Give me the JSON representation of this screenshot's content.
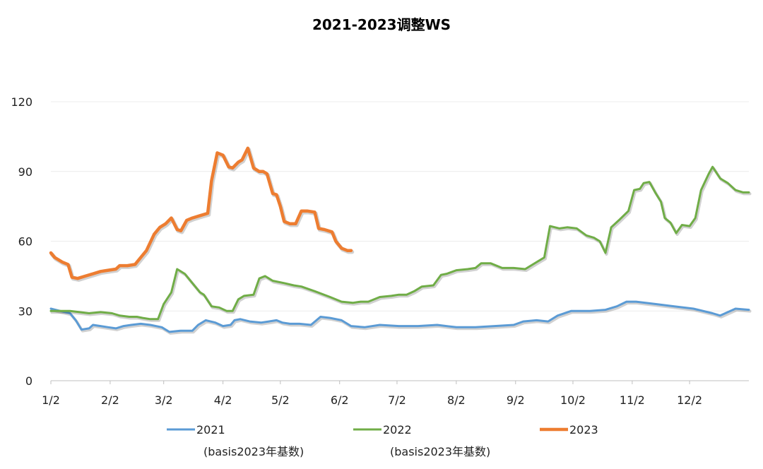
{
  "chart_data": {
    "type": "line",
    "title": "2021-2023调整WS",
    "xlabel": "",
    "ylabel": "",
    "ylim": [
      0,
      120
    ],
    "yticks": [
      0,
      30,
      60,
      90,
      120
    ],
    "xlim": [
      0,
      365
    ],
    "xticks": [
      {
        "label": "1/2",
        "day": 0
      },
      {
        "label": "2/2",
        "day": 31
      },
      {
        "label": "3/2",
        "day": 59
      },
      {
        "label": "4/2",
        "day": 90
      },
      {
        "label": "5/2",
        "day": 120
      },
      {
        "label": "6/2",
        "day": 151
      },
      {
        "label": "7/2",
        "day": 181
      },
      {
        "label": "8/2",
        "day": 212
      },
      {
        "label": "9/2",
        "day": 243
      },
      {
        "label": "10/2",
        "day": 273
      },
      {
        "label": "11/2",
        "day": 304
      },
      {
        "label": "12/2",
        "day": 334
      }
    ],
    "grid": true,
    "legend_position": "bottom",
    "notes": [
      "(basis2023年基数)",
      "(basis2023年基数)"
    ],
    "series": [
      {
        "name": "2021",
        "color": "#5B9BD5",
        "points": [
          [
            0,
            31
          ],
          [
            5,
            30
          ],
          [
            10,
            29
          ],
          [
            13,
            26
          ],
          [
            16,
            22
          ],
          [
            20,
            22.5
          ],
          [
            22,
            24
          ],
          [
            26,
            23.5
          ],
          [
            30,
            23
          ],
          [
            34,
            22.5
          ],
          [
            38,
            23.5
          ],
          [
            42,
            24
          ],
          [
            47,
            24.5
          ],
          [
            52,
            24
          ],
          [
            58,
            23
          ],
          [
            62,
            21
          ],
          [
            68,
            21.5
          ],
          [
            74,
            21.5
          ],
          [
            77,
            24
          ],
          [
            81,
            26
          ],
          [
            86,
            25
          ],
          [
            90,
            23.5
          ],
          [
            94,
            24
          ],
          [
            96,
            26
          ],
          [
            99,
            26.5
          ],
          [
            104,
            25.5
          ],
          [
            110,
            25
          ],
          [
            114,
            25.5
          ],
          [
            118,
            26
          ],
          [
            121,
            25
          ],
          [
            125,
            24.5
          ],
          [
            130,
            24.5
          ],
          [
            136,
            24
          ],
          [
            141,
            27.5
          ],
          [
            146,
            27
          ],
          [
            152,
            26
          ],
          [
            157,
            23.5
          ],
          [
            164,
            23
          ],
          [
            172,
            24
          ],
          [
            182,
            23.5
          ],
          [
            192,
            23.5
          ],
          [
            202,
            24
          ],
          [
            212,
            23
          ],
          [
            222,
            23
          ],
          [
            232,
            23.5
          ],
          [
            242,
            24
          ],
          [
            247,
            25.5
          ],
          [
            254,
            26
          ],
          [
            260,
            25.5
          ],
          [
            265,
            28
          ],
          [
            272,
            30
          ],
          [
            282,
            30
          ],
          [
            290,
            30.5
          ],
          [
            296,
            32
          ],
          [
            301,
            34
          ],
          [
            306,
            34
          ],
          [
            316,
            33
          ],
          [
            326,
            32
          ],
          [
            336,
            31
          ],
          [
            346,
            29
          ],
          [
            350,
            28
          ],
          [
            354,
            29.5
          ],
          [
            358,
            31
          ],
          [
            365,
            30.5
          ]
        ]
      },
      {
        "name": "2022",
        "color": "#70AD47",
        "points": [
          [
            0,
            30
          ],
          [
            10,
            30
          ],
          [
            20,
            29
          ],
          [
            26,
            29.5
          ],
          [
            32,
            29
          ],
          [
            36,
            28
          ],
          [
            41,
            27.5
          ],
          [
            45,
            27.5
          ],
          [
            48,
            27
          ],
          [
            52,
            26.5
          ],
          [
            56,
            26.5
          ],
          [
            59,
            33
          ],
          [
            63,
            38
          ],
          [
            66,
            48
          ],
          [
            70,
            46
          ],
          [
            74,
            42
          ],
          [
            78,
            38
          ],
          [
            80,
            37
          ],
          [
            84,
            32
          ],
          [
            88,
            31.5
          ],
          [
            92,
            30
          ],
          [
            95,
            30
          ],
          [
            98,
            35
          ],
          [
            101,
            36.5
          ],
          [
            106,
            37
          ],
          [
            109,
            44
          ],
          [
            112,
            45
          ],
          [
            116,
            43
          ],
          [
            122,
            42
          ],
          [
            127,
            41
          ],
          [
            131,
            40.5
          ],
          [
            138,
            38.5
          ],
          [
            146,
            36
          ],
          [
            152,
            34
          ],
          [
            158,
            33.5
          ],
          [
            162,
            34
          ],
          [
            166,
            34
          ],
          [
            172,
            36
          ],
          [
            178,
            36.5
          ],
          [
            182,
            37
          ],
          [
            186,
            37
          ],
          [
            190,
            38.5
          ],
          [
            194,
            40.5
          ],
          [
            200,
            41
          ],
          [
            204,
            45.5
          ],
          [
            207,
            46
          ],
          [
            212,
            47.5
          ],
          [
            218,
            48
          ],
          [
            222,
            48.5
          ],
          [
            225,
            50.5
          ],
          [
            230,
            50.5
          ],
          [
            236,
            48.5
          ],
          [
            242,
            48.5
          ],
          [
            248,
            48
          ],
          [
            254,
            51
          ],
          [
            258,
            53
          ],
          [
            261,
            66.5
          ],
          [
            266,
            65.5
          ],
          [
            270,
            66
          ],
          [
            275,
            65.5
          ],
          [
            280,
            62.5
          ],
          [
            284,
            61.5
          ],
          [
            287,
            60
          ],
          [
            290,
            55
          ],
          [
            293,
            66
          ],
          [
            297,
            69
          ],
          [
            302,
            73
          ],
          [
            305,
            82
          ],
          [
            308,
            82.5
          ],
          [
            310,
            85
          ],
          [
            313,
            85.5
          ],
          [
            316,
            81
          ],
          [
            319,
            77
          ],
          [
            321,
            70
          ],
          [
            324,
            68
          ],
          [
            327,
            63.5
          ],
          [
            330,
            67
          ],
          [
            334,
            66.5
          ],
          [
            337,
            70
          ],
          [
            340,
            82
          ],
          [
            344,
            89
          ],
          [
            346,
            92
          ],
          [
            350,
            87
          ],
          [
            354,
            85
          ],
          [
            358,
            82
          ],
          [
            362,
            81
          ],
          [
            365,
            81
          ]
        ]
      },
      {
        "name": "2023",
        "color": "#ED7D31",
        "points": [
          [
            0,
            55
          ],
          [
            2,
            53
          ],
          [
            6,
            51
          ],
          [
            9,
            50
          ],
          [
            11,
            44.5
          ],
          [
            14,
            44
          ],
          [
            18,
            45
          ],
          [
            22,
            46
          ],
          [
            26,
            47
          ],
          [
            30,
            47.5
          ],
          [
            34,
            48
          ],
          [
            36,
            49.5
          ],
          [
            40,
            49.5
          ],
          [
            44,
            50
          ],
          [
            47,
            53
          ],
          [
            50,
            56
          ],
          [
            54,
            63
          ],
          [
            57,
            66
          ],
          [
            60,
            67.5
          ],
          [
            63,
            70
          ],
          [
            66,
            65
          ],
          [
            68,
            64.5
          ],
          [
            71,
            69
          ],
          [
            74,
            70
          ],
          [
            78,
            71
          ],
          [
            82,
            72
          ],
          [
            84,
            86
          ],
          [
            87,
            98
          ],
          [
            90,
            97
          ],
          [
            93,
            92
          ],
          [
            95,
            91.5
          ],
          [
            98,
            94
          ],
          [
            100,
            95
          ],
          [
            103,
            100
          ],
          [
            106,
            91.5
          ],
          [
            109,
            90
          ],
          [
            111,
            90
          ],
          [
            113,
            89
          ],
          [
            116,
            80.5
          ],
          [
            118,
            80
          ],
          [
            120,
            75
          ],
          [
            122,
            68.5
          ],
          [
            125,
            67.5
          ],
          [
            128,
            67.5
          ],
          [
            131,
            73
          ],
          [
            134,
            73
          ],
          [
            138,
            72.5
          ],
          [
            140,
            65.5
          ],
          [
            143,
            65
          ],
          [
            147,
            64
          ],
          [
            149,
            60
          ],
          [
            152,
            57
          ],
          [
            155,
            56
          ],
          [
            157,
            56
          ]
        ]
      }
    ]
  },
  "legend": [
    {
      "label": "2021",
      "color": "#5B9BD5"
    },
    {
      "label": "2022",
      "color": "#70AD47"
    },
    {
      "label": "2023",
      "color": "#ED7D31"
    }
  ]
}
